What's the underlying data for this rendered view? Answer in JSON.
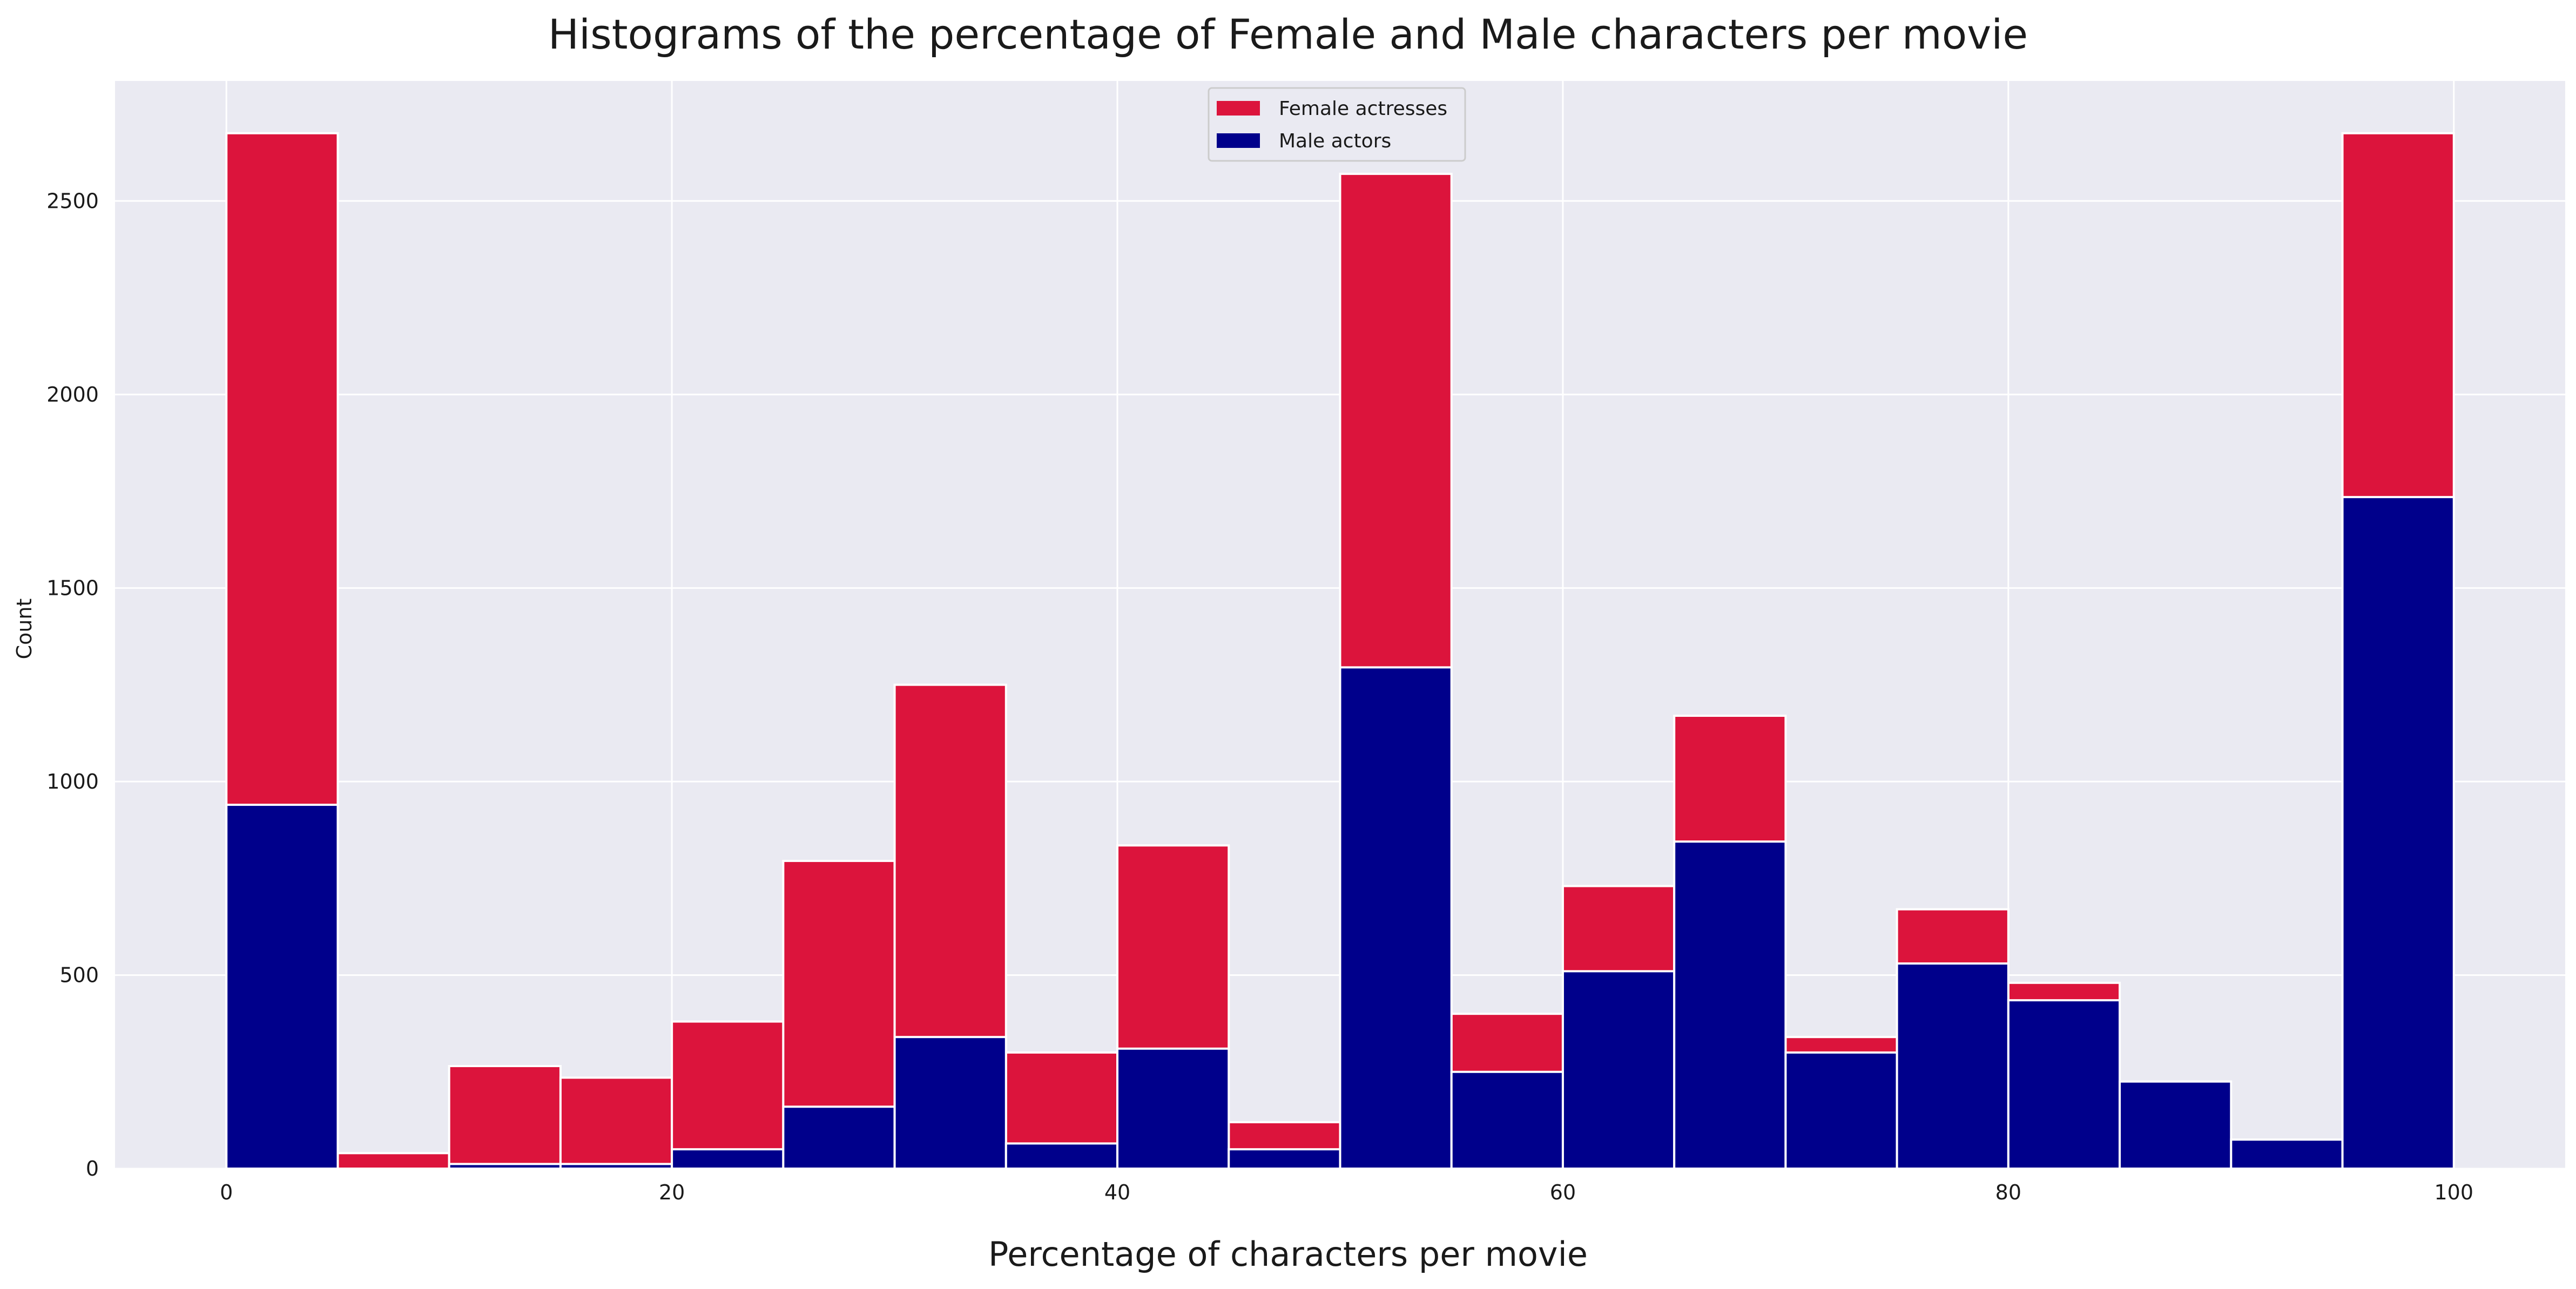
{
  "chart_data": {
    "type": "bar",
    "title": "Histograms of the percentage of Female and Male characters per movie",
    "xlabel": "Percentage of characters per movie",
    "ylabel": "Count",
    "xlim": [
      -5,
      105
    ],
    "ylim": [
      0,
      2810
    ],
    "x_ticks": [
      0,
      20,
      40,
      60,
      80,
      100
    ],
    "y_ticks": [
      0,
      500,
      1000,
      1500,
      2000,
      2500
    ],
    "bin_edges": [
      0,
      5,
      10,
      15,
      20,
      25,
      30,
      35,
      40,
      45,
      50,
      55,
      60,
      65,
      70,
      75,
      80,
      85,
      90,
      95,
      100
    ],
    "grid": true,
    "legend_position": "top-center",
    "series": [
      {
        "name": "Female actresses",
        "color": "#dc143c",
        "values": [
          2675,
          40,
          265,
          235,
          380,
          795,
          1250,
          300,
          835,
          120,
          2570,
          400,
          730,
          1170,
          340,
          670,
          480,
          0,
          0,
          2675
        ]
      },
      {
        "name": "Male actors",
        "color": "#00008b",
        "values": [
          940,
          0,
          12,
          12,
          50,
          160,
          340,
          65,
          310,
          50,
          1295,
          250,
          510,
          845,
          300,
          530,
          435,
          225,
          75,
          1735
        ]
      }
    ]
  }
}
